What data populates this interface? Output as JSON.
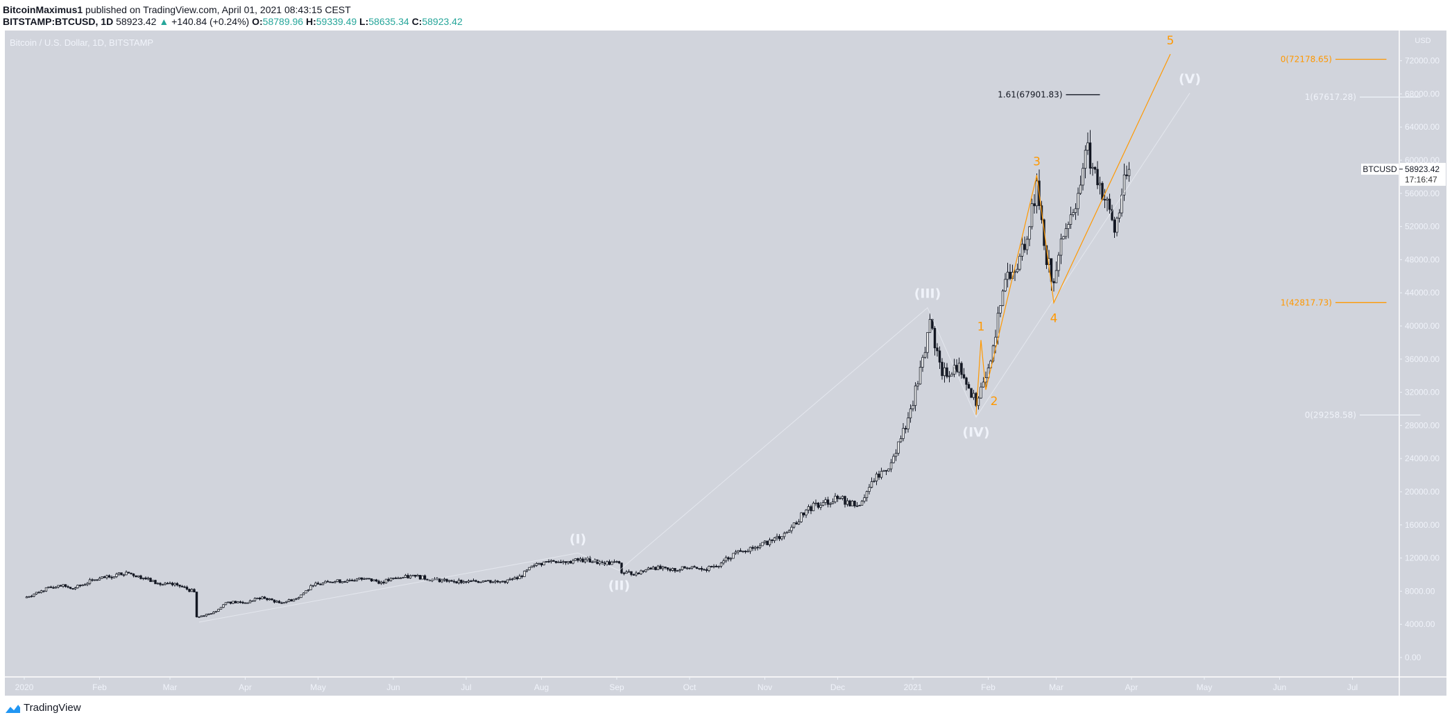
{
  "header": {
    "author": "BitcoinMaximus1",
    "published": "published on TradingView.com, April 01, 2021 08:43:15 CEST",
    "symbol": "BITSTAMP:BTCUSD, 1D",
    "last": "58923.42",
    "change": "+140.84 (+0.24%)",
    "open_label": "O:",
    "open": "58789.96",
    "high_label": "H:",
    "high": "59339.49",
    "low_label": "L:",
    "low": "58635.34",
    "close_label": "C:",
    "close": "58923.42",
    "up_color": "#26a69a"
  },
  "chart_title": "Bitcoin / U.S. Dollar, 1D, BITSTAMP",
  "logo_text": "TradingView",
  "colors": {
    "background": "#d1d4dc",
    "orange": "#ff9800",
    "wave_white": "#f0f3fa",
    "candle_down": "#131722",
    "candle_up": "#ffffff"
  },
  "chart_data": {
    "type": "candlestick",
    "ylabel": "USD",
    "ylim": [
      -2500,
      75500
    ],
    "xlim": [
      "2019-12-23",
      "2021-07-31"
    ],
    "grid": false,
    "y_ticks": [
      "0.00",
      "4000.00",
      "8000.00",
      "12000.00",
      "16000.00",
      "20000.00",
      "24000.00",
      "28000.00",
      "32000.00",
      "36000.00",
      "40000.00",
      "44000.00",
      "48000.00",
      "52000.00",
      "56000.00",
      "60000.00",
      "64000.00",
      "68000.00",
      "72000.00"
    ],
    "x_ticks": [
      {
        "label": "2020",
        "date": "2020-01-01"
      },
      {
        "label": "Feb",
        "date": "2020-02-01"
      },
      {
        "label": "Mar",
        "date": "2020-03-01"
      },
      {
        "label": "Apr",
        "date": "2020-04-01"
      },
      {
        "label": "May",
        "date": "2020-05-01"
      },
      {
        "label": "Jun",
        "date": "2020-06-01"
      },
      {
        "label": "Jul",
        "date": "2020-07-01"
      },
      {
        "label": "Aug",
        "date": "2020-08-01"
      },
      {
        "label": "Sep",
        "date": "2020-09-01"
      },
      {
        "label": "Oct",
        "date": "2020-10-01"
      },
      {
        "label": "Nov",
        "date": "2020-11-01"
      },
      {
        "label": "Dec",
        "date": "2020-12-01"
      },
      {
        "label": "2021",
        "date": "2021-01-01"
      },
      {
        "label": "Feb",
        "date": "2021-02-01"
      },
      {
        "label": "Mar",
        "date": "2021-03-01"
      },
      {
        "label": "Apr",
        "date": "2021-04-01"
      },
      {
        "label": "May",
        "date": "2021-05-01"
      },
      {
        "label": "Jun",
        "date": "2021-06-01"
      },
      {
        "label": "Jul",
        "date": "2021-07-01"
      }
    ],
    "close_series": [
      [
        "2020-01-01",
        7200
      ],
      [
        "2020-01-08",
        8050
      ],
      [
        "2020-01-15",
        8700
      ],
      [
        "2020-01-22",
        8400
      ],
      [
        "2020-01-29",
        9300
      ],
      [
        "2020-02-05",
        9700
      ],
      [
        "2020-02-12",
        10300
      ],
      [
        "2020-02-19",
        9600
      ],
      [
        "2020-02-26",
        8800
      ],
      [
        "2020-03-04",
        8750
      ],
      [
        "2020-03-11",
        7900
      ],
      [
        "2020-03-12",
        4900
      ],
      [
        "2020-03-18",
        5300
      ],
      [
        "2020-03-25",
        6700
      ],
      [
        "2020-04-01",
        6600
      ],
      [
        "2020-04-08",
        7300
      ],
      [
        "2020-04-15",
        6600
      ],
      [
        "2020-04-22",
        7100
      ],
      [
        "2020-04-29",
        8700
      ],
      [
        "2020-05-06",
        9100
      ],
      [
        "2020-05-13",
        9300
      ],
      [
        "2020-05-20",
        9500
      ],
      [
        "2020-05-27",
        9100
      ],
      [
        "2020-06-03",
        9600
      ],
      [
        "2020-06-10",
        9800
      ],
      [
        "2020-06-17",
        9400
      ],
      [
        "2020-06-24",
        9300
      ],
      [
        "2020-07-01",
        9100
      ],
      [
        "2020-07-08",
        9250
      ],
      [
        "2020-07-15",
        9150
      ],
      [
        "2020-07-22",
        9500
      ],
      [
        "2020-07-29",
        11100
      ],
      [
        "2020-08-05",
        11700
      ],
      [
        "2020-08-12",
        11600
      ],
      [
        "2020-08-19",
        11800
      ],
      [
        "2020-08-26",
        11400
      ],
      [
        "2020-09-02",
        11400
      ],
      [
        "2020-09-03",
        10200
      ],
      [
        "2020-09-09",
        10200
      ],
      [
        "2020-09-16",
        10900
      ],
      [
        "2020-09-23",
        10500
      ],
      [
        "2020-09-30",
        10800
      ],
      [
        "2020-10-07",
        10600
      ],
      [
        "2020-10-14",
        11400
      ],
      [
        "2020-10-21",
        12900
      ],
      [
        "2020-10-28",
        13300
      ],
      [
        "2020-11-04",
        14100
      ],
      [
        "2020-11-11",
        15300
      ],
      [
        "2020-11-18",
        17800
      ],
      [
        "2020-11-25",
        18700
      ],
      [
        "2020-12-02",
        19200
      ],
      [
        "2020-12-09",
        18300
      ],
      [
        "2020-12-16",
        21300
      ],
      [
        "2020-12-23",
        23500
      ],
      [
        "2020-12-30",
        28900
      ],
      [
        "2021-01-06",
        36800
      ],
      [
        "2021-01-08",
        40800
      ],
      [
        "2021-01-13",
        34000
      ],
      [
        "2021-01-20",
        35500
      ],
      [
        "2021-01-27",
        30400
      ],
      [
        "2021-02-03",
        37600
      ],
      [
        "2021-02-09",
        46500
      ],
      [
        "2021-02-16",
        49200
      ],
      [
        "2021-02-21",
        57500
      ],
      [
        "2021-02-24",
        49700
      ],
      [
        "2021-02-28",
        45200
      ],
      [
        "2021-03-03",
        50500
      ],
      [
        "2021-03-10",
        56000
      ],
      [
        "2021-03-13",
        61200
      ],
      [
        "2021-03-17",
        58900
      ],
      [
        "2021-03-24",
        52800
      ],
      [
        "2021-03-25",
        51300
      ],
      [
        "2021-03-28",
        55800
      ],
      [
        "2021-03-31",
        58900
      ]
    ],
    "last_price": {
      "symbol": "BTCUSD",
      "price": "58923.42",
      "countdown": "17:16:47",
      "value": 58923.42
    },
    "annotations": {
      "primary_waves": {
        "color": "#f0f3fa",
        "points": [
          [
            "2020-03-13",
            4270
          ],
          [
            "2020-08-16",
            12600
          ],
          [
            "2020-09-02",
            10500
          ],
          [
            "2021-01-07",
            42200
          ],
          [
            "2021-01-27",
            29000
          ],
          [
            "2021-04-25",
            68100
          ]
        ],
        "labels": [
          {
            "text": "(I)",
            "date": "2020-08-16",
            "price": 12600,
            "pos": "above"
          },
          {
            "text": "(II)",
            "date": "2020-09-02",
            "price": 10500,
            "pos": "below"
          },
          {
            "text": "(III)",
            "date": "2021-01-07",
            "price": 42200,
            "pos": "above"
          },
          {
            "text": "(IV)",
            "date": "2021-01-27",
            "price": 29000,
            "pos": "below"
          },
          {
            "text": "(V)",
            "date": "2021-04-25",
            "price": 68100,
            "pos": "above"
          }
        ]
      },
      "minor_waves": {
        "color": "#ff9800",
        "points": [
          [
            "2021-01-27",
            29300
          ],
          [
            "2021-01-29",
            38300
          ],
          [
            "2021-01-31",
            32300
          ],
          [
            "2021-02-21",
            58200
          ],
          [
            "2021-02-28",
            42800
          ],
          [
            "2021-04-17",
            72800
          ]
        ],
        "labels": [
          {
            "text": "1",
            "date": "2021-01-29",
            "price": 38300,
            "pos": "above"
          },
          {
            "text": "2",
            "date": "2021-01-31",
            "price": 32300,
            "pos": "below-right"
          },
          {
            "text": "3",
            "date": "2021-02-21",
            "price": 58200,
            "pos": "above"
          },
          {
            "text": "4",
            "date": "2021-02-28",
            "price": 42800,
            "pos": "below"
          },
          {
            "text": "5",
            "date": "2021-04-17",
            "price": 72800,
            "pos": "above"
          }
        ]
      },
      "fib_levels": [
        {
          "text": "1.61(67901.83)",
          "value": 67901.83,
          "color": "#131722",
          "from": "2021-03-05",
          "to": "2021-03-19"
        },
        {
          "text": "0(72178.65)",
          "value": 72178.65,
          "color": "#ff9800",
          "from": "2021-06-24",
          "to": "2021-07-15"
        },
        {
          "text": "1(67617.28)",
          "value": 67617.28,
          "color": "#f0f3fa",
          "from": "2021-07-04",
          "to": "2021-07-29"
        },
        {
          "text": "1(42817.73)",
          "value": 42817.73,
          "color": "#ff9800",
          "from": "2021-06-24",
          "to": "2021-07-15"
        },
        {
          "text": "0(29258.58)",
          "value": 29258.58,
          "color": "#f0f3fa",
          "from": "2021-07-04",
          "to": "2021-07-29"
        }
      ]
    }
  }
}
